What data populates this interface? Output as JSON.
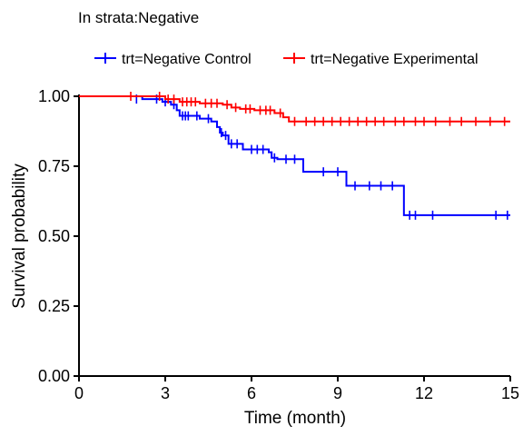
{
  "chart_data": {
    "type": "line",
    "subtype": "kaplan-meier step",
    "title": "In strata:Negative",
    "xlabel": "Time (month)",
    "ylabel": "Survival probability",
    "xlim": [
      0,
      15
    ],
    "ylim": [
      0,
      1
    ],
    "x_ticks": [
      0,
      3,
      6,
      9,
      12,
      15
    ],
    "y_ticks": [
      0.0,
      0.25,
      0.5,
      0.75,
      1.0
    ],
    "x_tick_labels": [
      "0",
      "3",
      "6",
      "9",
      "12",
      "15"
    ],
    "y_tick_labels": [
      "0.00",
      "0.25",
      "0.50",
      "0.75",
      "1.00"
    ],
    "grid": false,
    "legend_position": "top",
    "series": [
      {
        "name": "trt=Negative Control",
        "color": "#0000ff",
        "steps": [
          [
            0,
            1.0
          ],
          [
            2.2,
            0.99
          ],
          [
            2.9,
            0.98
          ],
          [
            3.2,
            0.97
          ],
          [
            3.4,
            0.95
          ],
          [
            3.5,
            0.93
          ],
          [
            4.2,
            0.92
          ],
          [
            4.6,
            0.91
          ],
          [
            4.8,
            0.89
          ],
          [
            4.9,
            0.87
          ],
          [
            5.0,
            0.86
          ],
          [
            5.2,
            0.83
          ],
          [
            5.7,
            0.81
          ],
          [
            6.6,
            0.8
          ],
          [
            6.7,
            0.78
          ],
          [
            6.9,
            0.775
          ],
          [
            7.8,
            0.73
          ],
          [
            9.3,
            0.68
          ],
          [
            11.3,
            0.575
          ],
          [
            15,
            0.575
          ]
        ],
        "censors": [
          [
            2.0,
            0.99
          ],
          [
            2.7,
            0.99
          ],
          [
            3.0,
            0.98
          ],
          [
            3.3,
            0.97
          ],
          [
            3.6,
            0.93
          ],
          [
            3.7,
            0.93
          ],
          [
            3.8,
            0.93
          ],
          [
            4.1,
            0.93
          ],
          [
            4.5,
            0.92
          ],
          [
            4.95,
            0.87
          ],
          [
            5.1,
            0.86
          ],
          [
            5.3,
            0.83
          ],
          [
            5.5,
            0.83
          ],
          [
            6.0,
            0.81
          ],
          [
            6.2,
            0.81
          ],
          [
            6.4,
            0.81
          ],
          [
            6.8,
            0.78
          ],
          [
            7.2,
            0.775
          ],
          [
            7.5,
            0.775
          ],
          [
            8.5,
            0.73
          ],
          [
            9.0,
            0.73
          ],
          [
            9.6,
            0.68
          ],
          [
            10.1,
            0.68
          ],
          [
            10.5,
            0.68
          ],
          [
            10.9,
            0.68
          ],
          [
            11.5,
            0.575
          ],
          [
            11.7,
            0.575
          ],
          [
            12.3,
            0.575
          ],
          [
            14.5,
            0.575
          ],
          [
            14.9,
            0.575
          ]
        ]
      },
      {
        "name": "trt=Negative Experimental",
        "color": "#ff0000",
        "steps": [
          [
            0,
            1.0
          ],
          [
            3.0,
            0.99
          ],
          [
            3.5,
            0.98
          ],
          [
            4.2,
            0.975
          ],
          [
            5.0,
            0.97
          ],
          [
            5.3,
            0.96
          ],
          [
            5.6,
            0.955
          ],
          [
            6.1,
            0.95
          ],
          [
            6.8,
            0.94
          ],
          [
            7.1,
            0.925
          ],
          [
            7.3,
            0.91
          ],
          [
            15,
            0.91
          ]
        ],
        "censors": [
          [
            1.8,
            1.0
          ],
          [
            2.8,
            1.0
          ],
          [
            3.1,
            0.99
          ],
          [
            3.3,
            0.99
          ],
          [
            3.6,
            0.98
          ],
          [
            3.75,
            0.98
          ],
          [
            3.9,
            0.98
          ],
          [
            4.05,
            0.98
          ],
          [
            4.4,
            0.975
          ],
          [
            4.6,
            0.975
          ],
          [
            4.8,
            0.975
          ],
          [
            5.15,
            0.97
          ],
          [
            5.45,
            0.96
          ],
          [
            5.8,
            0.955
          ],
          [
            5.95,
            0.955
          ],
          [
            6.3,
            0.95
          ],
          [
            6.5,
            0.95
          ],
          [
            6.65,
            0.95
          ],
          [
            7.0,
            0.94
          ],
          [
            7.5,
            0.91
          ],
          [
            7.9,
            0.91
          ],
          [
            8.2,
            0.91
          ],
          [
            8.5,
            0.91
          ],
          [
            8.8,
            0.91
          ],
          [
            9.1,
            0.91
          ],
          [
            9.4,
            0.91
          ],
          [
            9.7,
            0.91
          ],
          [
            10.0,
            0.91
          ],
          [
            10.3,
            0.91
          ],
          [
            10.6,
            0.91
          ],
          [
            11.0,
            0.91
          ],
          [
            11.3,
            0.91
          ],
          [
            11.7,
            0.91
          ],
          [
            12.0,
            0.91
          ],
          [
            12.4,
            0.91
          ],
          [
            12.9,
            0.91
          ],
          [
            13.3,
            0.91
          ],
          [
            13.8,
            0.91
          ],
          [
            14.3,
            0.91
          ],
          [
            14.8,
            0.91
          ]
        ]
      }
    ]
  }
}
